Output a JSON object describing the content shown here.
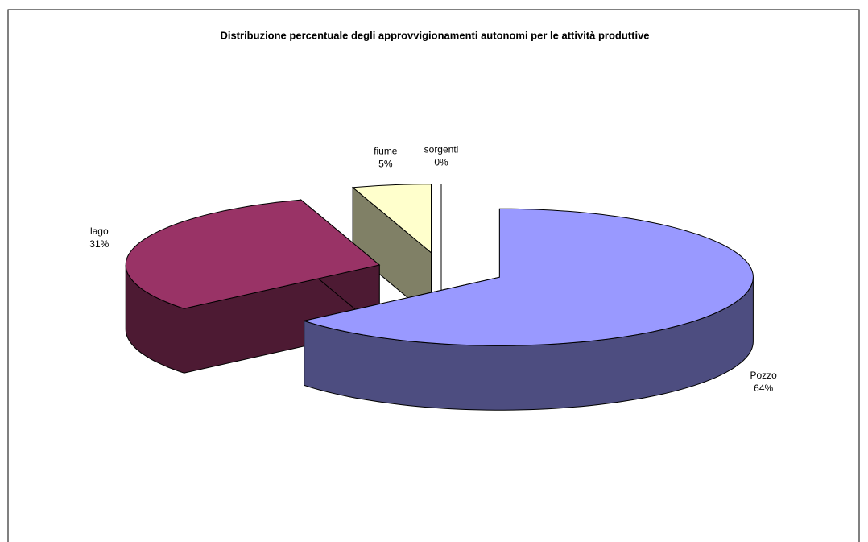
{
  "chart_data": {
    "type": "pie3d",
    "title": "Distribuzione percentuale degli approvvigionamenti autonomi per le attività produttive",
    "categories": [
      "Pozzo",
      "lago",
      "fiume",
      "sorgenti"
    ],
    "values": [
      64,
      31,
      5,
      0
    ],
    "value_labels": [
      "64%",
      "31%",
      "5%",
      "0%"
    ],
    "colors": [
      "#9999ff",
      "#993366",
      "#ffffcc",
      "#ccffff"
    ]
  }
}
